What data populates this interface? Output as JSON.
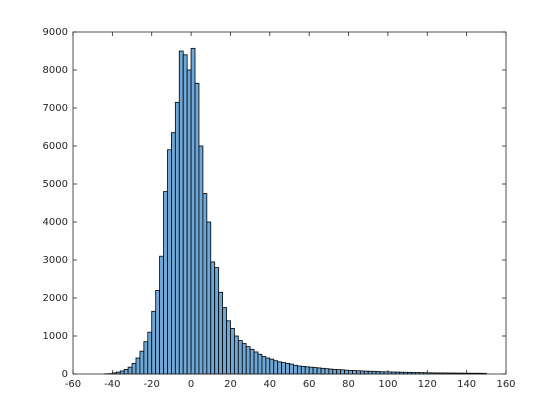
{
  "chart_data": {
    "type": "histogram",
    "bins": [
      -44,
      -42,
      -40,
      -38,
      -36,
      -34,
      -32,
      -30,
      -28,
      -26,
      -24,
      -22,
      -20,
      -18,
      -16,
      -14,
      -12,
      -10,
      -8,
      -6,
      -4,
      -2,
      0,
      2,
      4,
      6,
      8,
      10,
      12,
      14,
      16,
      18,
      20,
      22,
      24,
      26,
      28,
      30,
      32,
      34,
      36,
      38,
      40,
      42,
      44,
      46,
      48,
      50,
      52,
      54,
      56,
      58,
      60,
      62,
      64,
      66,
      68,
      70,
      72,
      74,
      76,
      78,
      80,
      82,
      84,
      86,
      88,
      90,
      92,
      94,
      96,
      98,
      100,
      102,
      104,
      106,
      108,
      110,
      112,
      114,
      116,
      118,
      120,
      122,
      124,
      126,
      128,
      130,
      132,
      134,
      136,
      138,
      140,
      142,
      144,
      146,
      148,
      150
    ],
    "counts": [
      5,
      10,
      30,
      50,
      80,
      120,
      180,
      280,
      420,
      600,
      850,
      1100,
      1650,
      2200,
      3100,
      4800,
      5900,
      6350,
      7150,
      8500,
      8400,
      8000,
      8570,
      7650,
      6000,
      4750,
      4000,
      2950,
      2800,
      2150,
      1750,
      1400,
      1200,
      1000,
      880,
      800,
      720,
      650,
      580,
      520,
      460,
      420,
      390,
      350,
      320,
      300,
      280,
      260,
      230,
      210,
      200,
      190,
      180,
      170,
      160,
      150,
      140,
      130,
      120,
      115,
      110,
      100,
      95,
      90,
      85,
      80,
      75,
      72,
      70,
      65,
      60,
      58,
      55,
      52,
      50,
      48,
      45,
      43,
      40,
      38,
      36,
      34,
      32,
      30,
      29,
      28,
      27,
      26,
      25,
      24,
      23,
      22,
      21,
      20,
      20,
      19,
      18
    ],
    "color": "#6fa8d6",
    "xlim": [
      -60,
      160
    ],
    "xticks": [
      -60,
      -40,
      -20,
      0,
      20,
      40,
      60,
      80,
      100,
      120,
      140,
      160
    ],
    "ylim": [
      0,
      9000
    ],
    "yticks": [
      0,
      1000,
      2000,
      3000,
      4000,
      5000,
      6000,
      7000,
      8000,
      9000
    ]
  }
}
